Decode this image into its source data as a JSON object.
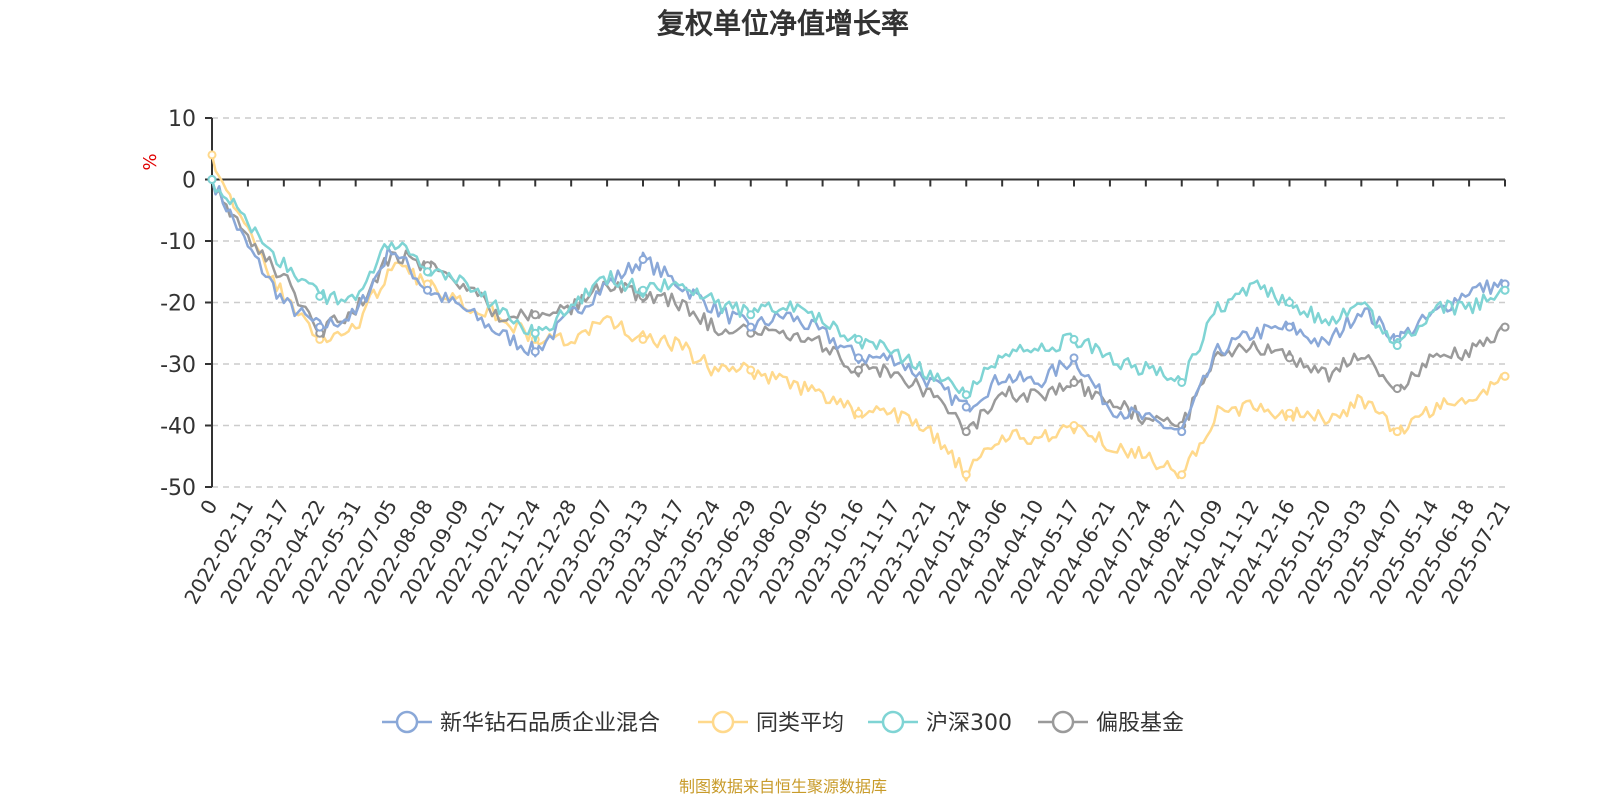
{
  "chart_data": {
    "type": "line",
    "title": "复权单位净值增长率",
    "ylabel": "%",
    "ylim": [
      -50,
      10
    ],
    "yticks": [
      10,
      0,
      -10,
      -20,
      -30,
      -40,
      -50
    ],
    "grid": true,
    "legend_position": "bottom",
    "x": [
      "0",
      "2022-02-11",
      "2022-03-17",
      "2022-04-22",
      "2022-05-31",
      "2022-07-05",
      "2022-08-08",
      "2022-09-09",
      "2022-10-21",
      "2022-11-24",
      "2022-12-28",
      "2023-02-07",
      "2023-03-13",
      "2023-04-17",
      "2023-05-24",
      "2023-06-29",
      "2023-08-02",
      "2023-09-05",
      "2023-10-16",
      "2023-11-17",
      "2023-12-21",
      "2024-01-24",
      "2024-03-06",
      "2024-04-10",
      "2024-05-17",
      "2024-06-21",
      "2024-07-24",
      "2024-08-27",
      "2024-10-09",
      "2024-11-12",
      "2024-12-16",
      "2025-01-20",
      "2025-03-03",
      "2025-04-07",
      "2025-05-14",
      "2025-06-18",
      "2025-07-21"
    ],
    "series": [
      {
        "name": "新华钻石品质企业混合",
        "color": "#8aa8d8",
        "values": [
          0,
          -11,
          -20,
          -24,
          -22,
          -11,
          -18,
          -21,
          -25,
          -28,
          -22,
          -17,
          -13,
          -17,
          -21,
          -24,
          -22,
          -25,
          -29,
          -29,
          -33,
          -37,
          -32,
          -33,
          -29,
          -37,
          -39,
          -41,
          -28,
          -25,
          -24,
          -27,
          -21,
          -26,
          -22,
          -18,
          -17
        ]
      },
      {
        "name": "同类平均",
        "color": "#ffd98c",
        "values": [
          4,
          -9,
          -19,
          -26,
          -24,
          -14,
          -17,
          -20,
          -22,
          -26,
          -26,
          -23,
          -26,
          -27,
          -31,
          -31,
          -33,
          -35,
          -38,
          -38,
          -41,
          -48,
          -42,
          -42,
          -40,
          -43,
          -45,
          -48,
          -38,
          -37,
          -38,
          -39,
          -36,
          -41,
          -37,
          -36,
          -32
        ]
      },
      {
        "name": "沪深300",
        "color": "#7fd4d4",
        "values": [
          0,
          -7,
          -14,
          -19,
          -19,
          -10,
          -15,
          -17,
          -21,
          -25,
          -21,
          -16,
          -18,
          -17,
          -20,
          -22,
          -20,
          -23,
          -26,
          -28,
          -32,
          -35,
          -28,
          -28,
          -26,
          -29,
          -31,
          -33,
          -21,
          -17,
          -20,
          -23,
          -20,
          -27,
          -21,
          -21,
          -18
        ]
      },
      {
        "name": "偏股基金",
        "color": "#9a9a9a",
        "values": [
          0,
          -10,
          -16,
          -25,
          -21,
          -12,
          -14,
          -17,
          -22,
          -22,
          -21,
          -17,
          -19,
          -20,
          -24,
          -25,
          -25,
          -27,
          -31,
          -31,
          -35,
          -41,
          -35,
          -35,
          -33,
          -36,
          -39,
          -40,
          -29,
          -27,
          -29,
          -32,
          -28,
          -34,
          -29,
          -28,
          -24
        ]
      }
    ]
  },
  "source_note": "制图数据来自恒生聚源数据库"
}
